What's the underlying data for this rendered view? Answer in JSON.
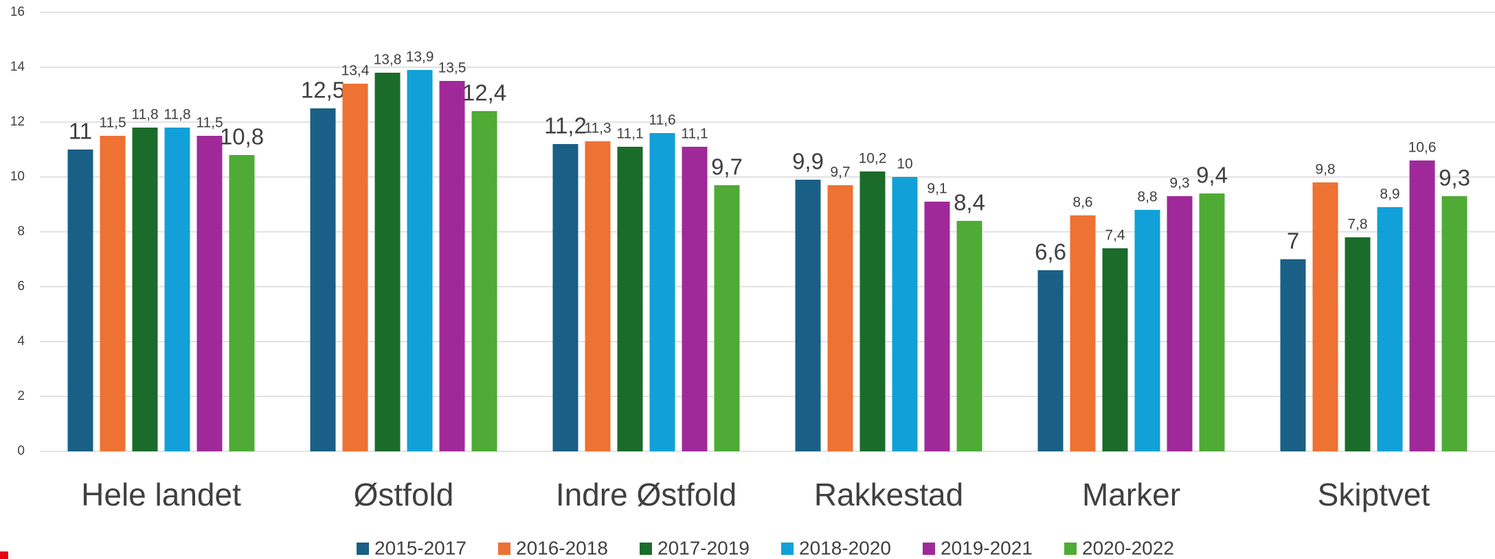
{
  "chart_data": {
    "type": "bar",
    "categories": [
      "Hele landet",
      "Østfold",
      "Indre Østfold",
      "Rakkestad",
      "Marker",
      "Skiptvet"
    ],
    "series": [
      {
        "name": "2015-2017",
        "color": "#1a5f85",
        "values": [
          11,
          12.5,
          11.2,
          9.9,
          6.6,
          7
        ],
        "value_labels": [
          "11",
          "12,5",
          "11,2",
          "9,9",
          "6,6",
          "7"
        ]
      },
      {
        "name": "2016-2018",
        "color": "#ed7233",
        "values": [
          11.5,
          13.4,
          11.3,
          9.7,
          8.6,
          9.8
        ],
        "value_labels": [
          "11,5",
          "13,4",
          "11,3",
          "9,7",
          "8,6",
          "9,8"
        ]
      },
      {
        "name": "2017-2019",
        "color": "#1b6b2a",
        "values": [
          11.8,
          13.8,
          11.1,
          10.2,
          7.4,
          7.8
        ],
        "value_labels": [
          "11,8",
          "13,8",
          "11,1",
          "10,2",
          "7,4",
          "7,8"
        ]
      },
      {
        "name": "2018-2020",
        "color": "#12a0d8",
        "values": [
          11.8,
          13.9,
          11.6,
          10,
          8.8,
          8.9
        ],
        "value_labels": [
          "11,8",
          "13,9",
          "11,6",
          "10",
          "8,8",
          "8,9"
        ]
      },
      {
        "name": "2019-2021",
        "color": "#a0299a",
        "values": [
          11.5,
          13.5,
          11.1,
          9.1,
          9.3,
          10.6
        ],
        "value_labels": [
          "11,5",
          "13,5",
          "11,1",
          "9,1",
          "9,3",
          "10,6"
        ]
      },
      {
        "name": "2020-2022",
        "color": "#4fab35",
        "values": [
          10.8,
          12.4,
          9.7,
          8.4,
          9.4,
          9.3
        ],
        "value_labels": [
          "10,8",
          "12,4",
          "9,7",
          "8,4",
          "9,4",
          "9,3"
        ]
      }
    ],
    "ylim": [
      0,
      16
    ],
    "yticks": [
      0,
      2,
      4,
      6,
      8,
      10,
      12,
      14,
      16
    ],
    "grid": true,
    "legend": "bottom"
  }
}
